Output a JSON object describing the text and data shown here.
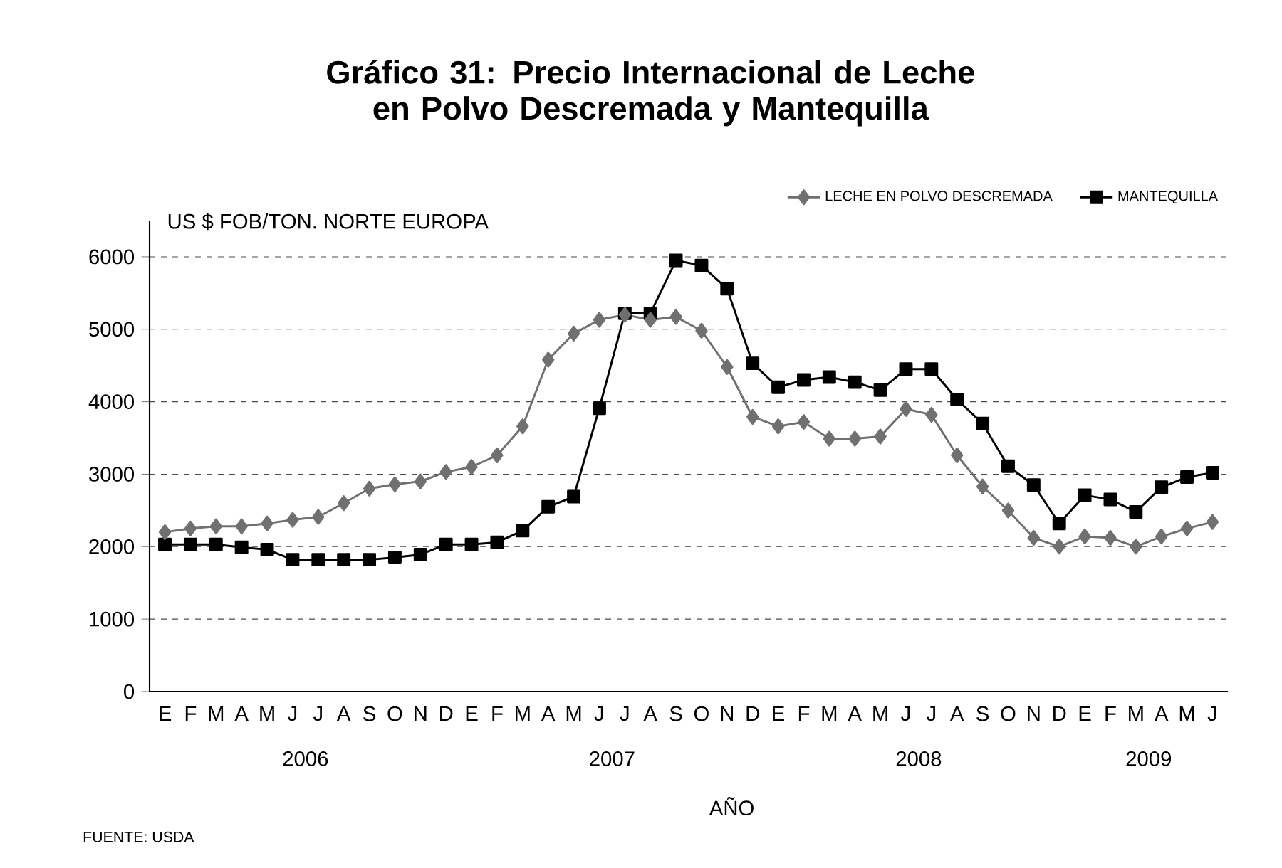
{
  "chart_data": {
    "type": "line",
    "title": "Gráfico 31: Precio Internacional de Leche en Polvo Descremada y Mantequilla",
    "ylabel": "US $ FOB/TON.  NORTE EUROPA",
    "xlabel": "AÑO",
    "categories": [
      "E",
      "F",
      "M",
      "A",
      "M",
      "J",
      "J",
      "A",
      "S",
      "O",
      "N",
      "D",
      "E",
      "F",
      "M",
      "A",
      "M",
      "J",
      "J",
      "A",
      "S",
      "O",
      "N",
      "D",
      "E",
      "F",
      "M",
      "A",
      "M",
      "J",
      "J",
      "A",
      "S",
      "O",
      "N",
      "D",
      "E",
      "F",
      "M",
      "A",
      "M",
      "J"
    ],
    "series": [
      {
        "name": "LECHE EN POLVO DESCREMADA",
        "color": "#707070",
        "marker": "diamond",
        "values": [
          2200,
          2250,
          2280,
          2280,
          2320,
          2370,
          2410,
          2600,
          2800,
          2860,
          2900,
          3030,
          3100,
          3260,
          3660,
          4580,
          4940,
          5130,
          5200,
          5130,
          5170,
          4980,
          4480,
          3790,
          3660,
          3720,
          3490,
          3490,
          3520,
          3900,
          3820,
          3260,
          2830,
          2500,
          2120,
          2000,
          2140,
          2120,
          2000,
          2140,
          2250,
          2340
        ]
      },
      {
        "name": "MANTEQUILLA",
        "color": "#000000",
        "marker": "square",
        "values": [
          2030,
          2030,
          2030,
          1990,
          1960,
          1820,
          1820,
          1820,
          1820,
          1850,
          1890,
          2030,
          2030,
          2060,
          2220,
          2550,
          2690,
          3910,
          5220,
          5220,
          5950,
          5880,
          5560,
          4530,
          4200,
          4300,
          4340,
          4270,
          4160,
          4450,
          4450,
          4030,
          3700,
          3110,
          2850,
          2320,
          2710,
          2650,
          2480,
          2820,
          2960,
          3020
        ]
      }
    ],
    "ylim": [
      0,
      6500
    ],
    "yticks": [
      0,
      1000,
      2000,
      3000,
      4000,
      5000,
      6000
    ],
    "grid": "y",
    "legend": "top right",
    "line_style": "solid",
    "annotations": [
      "2006",
      "2007",
      "2008",
      "2009",
      "FUENTE: USDA"
    ]
  }
}
